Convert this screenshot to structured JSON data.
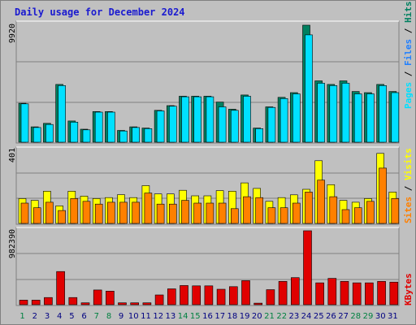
{
  "title": "Daily usage for December 2024",
  "colors": {
    "pages": "#00e0ff",
    "files": "#2080ff",
    "hits": "#008060",
    "sites": "#ff8000",
    "visits": "#ffff00",
    "kbytes": "#e00000",
    "weekend_day": "#008040",
    "weekday": "#000080"
  },
  "chart_data": [
    {
      "type": "bar",
      "title": "Pages / Files / Hits",
      "ymax_label": "9920",
      "ylim": [
        0,
        9920
      ],
      "legend": [
        "Pages",
        "/",
        "Files",
        "/",
        "Hits"
      ],
      "categories": [
        "1",
        "2",
        "3",
        "4",
        "5",
        "6",
        "7",
        "8",
        "9",
        "10",
        "11",
        "12",
        "13",
        "14",
        "15",
        "16",
        "17",
        "18",
        "19",
        "20",
        "21",
        "22",
        "23",
        "24",
        "25",
        "26",
        "27",
        "28",
        "29",
        "30",
        "31"
      ],
      "series": [
        {
          "name": "Hits",
          "values": [
            3300,
            1300,
            1600,
            4900,
            1800,
            1100,
            2600,
            2600,
            1000,
            1300,
            1200,
            2700,
            3100,
            3900,
            3900,
            3900,
            3400,
            2800,
            4000,
            1200,
            3000,
            3800,
            4200,
            9920,
            5200,
            4900,
            5200,
            4300,
            4200,
            4900,
            4300
          ]
        },
        {
          "name": "Pages",
          "values": [
            3250,
            1250,
            1500,
            4800,
            1700,
            1050,
            2550,
            2550,
            950,
            1250,
            1150,
            2650,
            3050,
            3850,
            3850,
            3850,
            3000,
            2700,
            3900,
            1150,
            2950,
            3700,
            4100,
            9100,
            5000,
            4800,
            5000,
            4100,
            4100,
            4800,
            4200
          ]
        }
      ]
    },
    {
      "type": "bar",
      "title": "Sites / Visits",
      "ymax_label": "401",
      "ylim": [
        0,
        401
      ],
      "legend": [
        "Sites",
        "/",
        "Visits"
      ],
      "categories": [
        "1",
        "2",
        "3",
        "4",
        "5",
        "6",
        "7",
        "8",
        "9",
        "10",
        "11",
        "12",
        "13",
        "14",
        "15",
        "16",
        "17",
        "18",
        "19",
        "20",
        "21",
        "22",
        "23",
        "24",
        "25",
        "26",
        "27",
        "28",
        "29",
        "30",
        "31"
      ],
      "series": [
        {
          "name": "Visits",
          "values": [
            135,
            125,
            175,
            95,
            175,
            148,
            135,
            140,
            156,
            140,
            205,
            160,
            160,
            180,
            150,
            150,
            178,
            175,
            220,
            190,
            120,
            140,
            155,
            185,
            340,
            210,
            125,
            115,
            135,
            380,
            170
          ]
        },
        {
          "name": "Sites",
          "values": [
            110,
            85,
            115,
            70,
            135,
            120,
            105,
            115,
            115,
            115,
            165,
            105,
            105,
            125,
            110,
            110,
            110,
            80,
            145,
            140,
            85,
            85,
            110,
            170,
            235,
            145,
            75,
            85,
            120,
            300,
            135
          ]
        }
      ]
    },
    {
      "type": "bar",
      "title": "KBytes",
      "ymax_label": "982390",
      "ylim": [
        0,
        982390
      ],
      "legend": [
        "KBytes"
      ],
      "categories": [
        "1",
        "2",
        "3",
        "4",
        "5",
        "6",
        "7",
        "8",
        "9",
        "10",
        "11",
        "12",
        "13",
        "14",
        "15",
        "16",
        "17",
        "18",
        "19",
        "20",
        "21",
        "22",
        "23",
        "24",
        "25",
        "26",
        "27",
        "28",
        "29",
        "30",
        "31"
      ],
      "series": [
        {
          "name": "KBytes",
          "values": [
            60000,
            60000,
            95000,
            440000,
            95000,
            25000,
            195000,
            180000,
            25000,
            25000,
            25000,
            130000,
            210000,
            255000,
            250000,
            250000,
            205000,
            240000,
            320000,
            20000,
            200000,
            310000,
            360000,
            982390,
            290000,
            350000,
            310000,
            290000,
            290000,
            310000,
            300000
          ]
        }
      ]
    }
  ]
}
